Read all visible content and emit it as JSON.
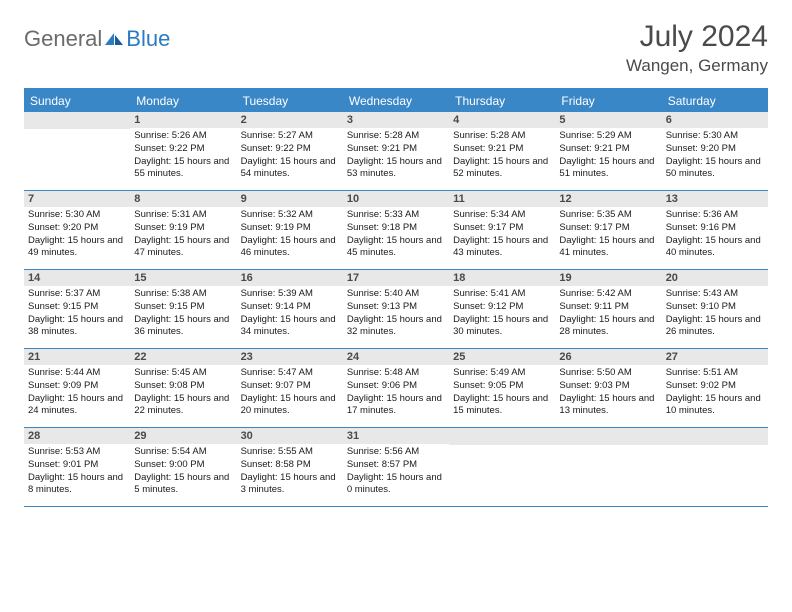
{
  "brand": {
    "part1": "General",
    "part2": "Blue"
  },
  "title": "July 2024",
  "location": "Wangen, Germany",
  "dayNames": [
    "Sunday",
    "Monday",
    "Tuesday",
    "Wednesday",
    "Thursday",
    "Friday",
    "Saturday"
  ],
  "colors": {
    "header_bg": "#3a87c8",
    "header_text": "#ffffff",
    "daynum_bg": "#e8e8e8",
    "border": "#3a87c8",
    "logo_gray": "#6b6b6b",
    "logo_blue": "#2b7ac2"
  },
  "weeks": [
    [
      {
        "n": "",
        "sr": "",
        "ss": "",
        "dl": ""
      },
      {
        "n": "1",
        "sr": "Sunrise: 5:26 AM",
        "ss": "Sunset: 9:22 PM",
        "dl": "Daylight: 15 hours and 55 minutes."
      },
      {
        "n": "2",
        "sr": "Sunrise: 5:27 AM",
        "ss": "Sunset: 9:22 PM",
        "dl": "Daylight: 15 hours and 54 minutes."
      },
      {
        "n": "3",
        "sr": "Sunrise: 5:28 AM",
        "ss": "Sunset: 9:21 PM",
        "dl": "Daylight: 15 hours and 53 minutes."
      },
      {
        "n": "4",
        "sr": "Sunrise: 5:28 AM",
        "ss": "Sunset: 9:21 PM",
        "dl": "Daylight: 15 hours and 52 minutes."
      },
      {
        "n": "5",
        "sr": "Sunrise: 5:29 AM",
        "ss": "Sunset: 9:21 PM",
        "dl": "Daylight: 15 hours and 51 minutes."
      },
      {
        "n": "6",
        "sr": "Sunrise: 5:30 AM",
        "ss": "Sunset: 9:20 PM",
        "dl": "Daylight: 15 hours and 50 minutes."
      }
    ],
    [
      {
        "n": "7",
        "sr": "Sunrise: 5:30 AM",
        "ss": "Sunset: 9:20 PM",
        "dl": "Daylight: 15 hours and 49 minutes."
      },
      {
        "n": "8",
        "sr": "Sunrise: 5:31 AM",
        "ss": "Sunset: 9:19 PM",
        "dl": "Daylight: 15 hours and 47 minutes."
      },
      {
        "n": "9",
        "sr": "Sunrise: 5:32 AM",
        "ss": "Sunset: 9:19 PM",
        "dl": "Daylight: 15 hours and 46 minutes."
      },
      {
        "n": "10",
        "sr": "Sunrise: 5:33 AM",
        "ss": "Sunset: 9:18 PM",
        "dl": "Daylight: 15 hours and 45 minutes."
      },
      {
        "n": "11",
        "sr": "Sunrise: 5:34 AM",
        "ss": "Sunset: 9:17 PM",
        "dl": "Daylight: 15 hours and 43 minutes."
      },
      {
        "n": "12",
        "sr": "Sunrise: 5:35 AM",
        "ss": "Sunset: 9:17 PM",
        "dl": "Daylight: 15 hours and 41 minutes."
      },
      {
        "n": "13",
        "sr": "Sunrise: 5:36 AM",
        "ss": "Sunset: 9:16 PM",
        "dl": "Daylight: 15 hours and 40 minutes."
      }
    ],
    [
      {
        "n": "14",
        "sr": "Sunrise: 5:37 AM",
        "ss": "Sunset: 9:15 PM",
        "dl": "Daylight: 15 hours and 38 minutes."
      },
      {
        "n": "15",
        "sr": "Sunrise: 5:38 AM",
        "ss": "Sunset: 9:15 PM",
        "dl": "Daylight: 15 hours and 36 minutes."
      },
      {
        "n": "16",
        "sr": "Sunrise: 5:39 AM",
        "ss": "Sunset: 9:14 PM",
        "dl": "Daylight: 15 hours and 34 minutes."
      },
      {
        "n": "17",
        "sr": "Sunrise: 5:40 AM",
        "ss": "Sunset: 9:13 PM",
        "dl": "Daylight: 15 hours and 32 minutes."
      },
      {
        "n": "18",
        "sr": "Sunrise: 5:41 AM",
        "ss": "Sunset: 9:12 PM",
        "dl": "Daylight: 15 hours and 30 minutes."
      },
      {
        "n": "19",
        "sr": "Sunrise: 5:42 AM",
        "ss": "Sunset: 9:11 PM",
        "dl": "Daylight: 15 hours and 28 minutes."
      },
      {
        "n": "20",
        "sr": "Sunrise: 5:43 AM",
        "ss": "Sunset: 9:10 PM",
        "dl": "Daylight: 15 hours and 26 minutes."
      }
    ],
    [
      {
        "n": "21",
        "sr": "Sunrise: 5:44 AM",
        "ss": "Sunset: 9:09 PM",
        "dl": "Daylight: 15 hours and 24 minutes."
      },
      {
        "n": "22",
        "sr": "Sunrise: 5:45 AM",
        "ss": "Sunset: 9:08 PM",
        "dl": "Daylight: 15 hours and 22 minutes."
      },
      {
        "n": "23",
        "sr": "Sunrise: 5:47 AM",
        "ss": "Sunset: 9:07 PM",
        "dl": "Daylight: 15 hours and 20 minutes."
      },
      {
        "n": "24",
        "sr": "Sunrise: 5:48 AM",
        "ss": "Sunset: 9:06 PM",
        "dl": "Daylight: 15 hours and 17 minutes."
      },
      {
        "n": "25",
        "sr": "Sunrise: 5:49 AM",
        "ss": "Sunset: 9:05 PM",
        "dl": "Daylight: 15 hours and 15 minutes."
      },
      {
        "n": "26",
        "sr": "Sunrise: 5:50 AM",
        "ss": "Sunset: 9:03 PM",
        "dl": "Daylight: 15 hours and 13 minutes."
      },
      {
        "n": "27",
        "sr": "Sunrise: 5:51 AM",
        "ss": "Sunset: 9:02 PM",
        "dl": "Daylight: 15 hours and 10 minutes."
      }
    ],
    [
      {
        "n": "28",
        "sr": "Sunrise: 5:53 AM",
        "ss": "Sunset: 9:01 PM",
        "dl": "Daylight: 15 hours and 8 minutes."
      },
      {
        "n": "29",
        "sr": "Sunrise: 5:54 AM",
        "ss": "Sunset: 9:00 PM",
        "dl": "Daylight: 15 hours and 5 minutes."
      },
      {
        "n": "30",
        "sr": "Sunrise: 5:55 AM",
        "ss": "Sunset: 8:58 PM",
        "dl": "Daylight: 15 hours and 3 minutes."
      },
      {
        "n": "31",
        "sr": "Sunrise: 5:56 AM",
        "ss": "Sunset: 8:57 PM",
        "dl": "Daylight: 15 hours and 0 minutes."
      },
      {
        "n": "",
        "sr": "",
        "ss": "",
        "dl": ""
      },
      {
        "n": "",
        "sr": "",
        "ss": "",
        "dl": ""
      },
      {
        "n": "",
        "sr": "",
        "ss": "",
        "dl": ""
      }
    ]
  ]
}
